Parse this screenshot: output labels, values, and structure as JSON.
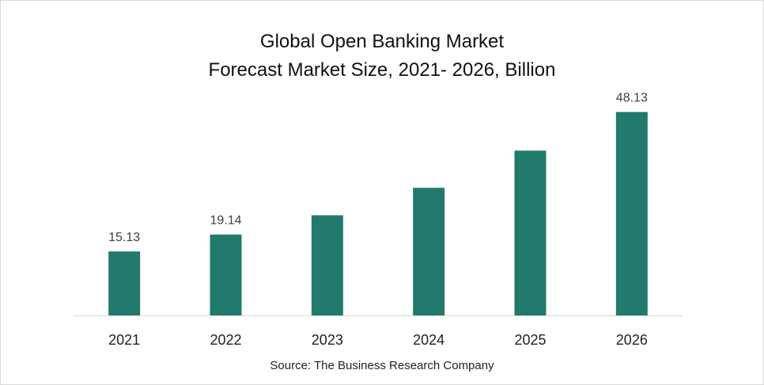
{
  "chart_data": {
    "type": "bar",
    "title": "Global Open Banking Market",
    "subtitle": "Forecast Market Size, 2021- 2026, Billion",
    "categories": [
      "2021",
      "2022",
      "2023",
      "2024",
      "2025",
      "2026"
    ],
    "values": [
      15.13,
      19.14,
      23.7,
      30.2,
      39.0,
      48.13
    ],
    "data_labels": [
      "15.13",
      "19.14",
      "",
      "",
      "",
      "48.13"
    ],
    "ylim": [
      0,
      52
    ],
    "xlabel": "",
    "ylabel": "",
    "grid": false,
    "legend": "none",
    "bar_color": "#217a6b"
  },
  "source": "Source: The Business Research Company"
}
